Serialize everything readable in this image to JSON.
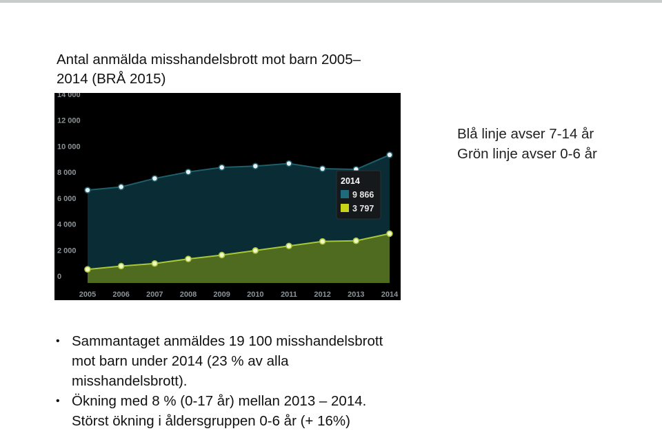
{
  "slide": {
    "title": "Antal anmälda misshandelsbrott mot barn 2005–\n2014 (BRÅ 2015)",
    "legend_lines": [
      "Blå linje avser 7-14 år",
      "Grön linje avser 0-6 år"
    ],
    "bullets": [
      {
        "lines": [
          "Sammantaget anmäldes 19 100 misshandelsbrott",
          "mot barn under 2014 (23 % av alla",
          "misshandelsbrott)."
        ]
      },
      {
        "lines": [
          "Ökning med 8 % (0-17 år) mellan 2013 – 2014.",
          "Störst ökning i åldersgruppen 0-6 år (+ 16%)"
        ]
      }
    ]
  },
  "chart_data": {
    "type": "area",
    "title": "",
    "xlabel": "",
    "ylabel": "",
    "x": [
      "2005",
      "2006",
      "2007",
      "2008",
      "2009",
      "2010",
      "2011",
      "2012",
      "2013",
      "2014"
    ],
    "ylim": [
      0,
      14000
    ],
    "yticks": [
      0,
      2000,
      4000,
      6000,
      8000,
      10000,
      12000,
      14000
    ],
    "ytick_labels": [
      "0",
      "2 000",
      "4 000",
      "6 000",
      "8 000",
      "10 000",
      "12 000",
      "14 000"
    ],
    "series": [
      {
        "values": [
          7150,
          7400,
          8050,
          8550,
          8900,
          9000,
          9200,
          8800,
          8750,
          9866
        ],
        "line_color": "#1f5e6b",
        "fill_color": "#0a2d35",
        "swatch_color": "#1e6b7d"
      },
      {
        "values": [
          1050,
          1300,
          1500,
          1850,
          2150,
          2500,
          2850,
          3200,
          3250,
          3797
        ],
        "line_color": "#a8c83a",
        "fill_color": "#4e6b20",
        "swatch_color": "#c7d417"
      }
    ],
    "tooltip": {
      "year": "2014",
      "values": [
        "9 866",
        "3 797"
      ]
    },
    "background": "#000000",
    "grid": false
  }
}
